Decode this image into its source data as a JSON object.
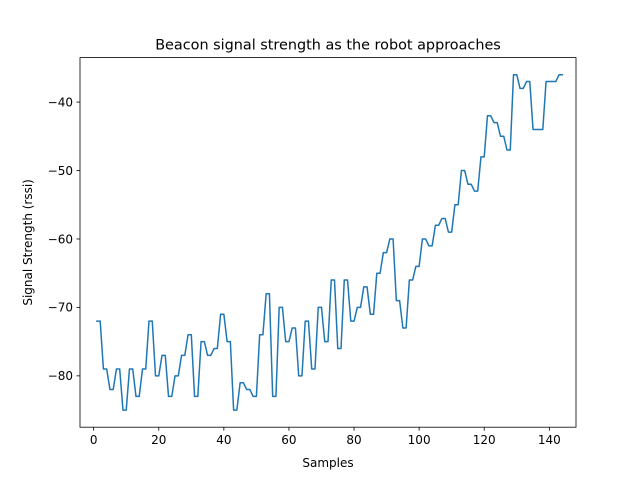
{
  "chart_data": {
    "type": "line",
    "title": "Beacon signal strength as the robot approaches",
    "xlabel": "Samples",
    "ylabel": "Signal Strength (rssi)",
    "xlim": [
      -4.2,
      148.2
    ],
    "ylim": [
      -87.5,
      -33.5
    ],
    "xticks": [
      0,
      20,
      40,
      60,
      80,
      100,
      120,
      140
    ],
    "yticks": [
      -80,
      -70,
      -60,
      -50,
      -40
    ],
    "grid": false,
    "legend": "none",
    "color": "#1f77b4",
    "series": [
      {
        "x": [
          1,
          2,
          3,
          4,
          5,
          6,
          7,
          8,
          9,
          10,
          11,
          12,
          13,
          14,
          15,
          16,
          17,
          18,
          19,
          20,
          21,
          22,
          23,
          24,
          25,
          26,
          27,
          28,
          29,
          30,
          31,
          32,
          33,
          34,
          35,
          36,
          37,
          38,
          39,
          40,
          41,
          42,
          43,
          44,
          45,
          46,
          47,
          48,
          49,
          50,
          51,
          52,
          53,
          54,
          55,
          56,
          57,
          58,
          59,
          60,
          61,
          62,
          63,
          64,
          65,
          66,
          67,
          68,
          69,
          70,
          71,
          72,
          73,
          74,
          75,
          76,
          77,
          78,
          79,
          80,
          81,
          82,
          83,
          84,
          85,
          86,
          87,
          88,
          89,
          90,
          91,
          92,
          93,
          94,
          95,
          96,
          97,
          98,
          99,
          100,
          101,
          102,
          103,
          104,
          105,
          106,
          107,
          108,
          109,
          110,
          111,
          112,
          113,
          114,
          115,
          116,
          117,
          118,
          119,
          120,
          121,
          122,
          123,
          124,
          125,
          126,
          127,
          128,
          129,
          130,
          131,
          132,
          133,
          134,
          135,
          136,
          137,
          138,
          139,
          140,
          141,
          142,
          143,
          144
        ],
        "values": [
          -72,
          -72,
          -79,
          -79,
          -82,
          -82,
          -79,
          -79,
          -85,
          -85,
          -79,
          -79,
          -83,
          -83,
          -79,
          -79,
          -72,
          -72,
          -80,
          -80,
          -77,
          -77,
          -83,
          -83,
          -80,
          -80,
          -77,
          -77,
          -74,
          -74,
          -83,
          -83,
          -75,
          -75,
          -77,
          -77,
          -76,
          -76,
          -71,
          -71,
          -75,
          -75,
          -85,
          -85,
          -81,
          -81,
          -82,
          -82,
          -83,
          -83,
          -74,
          -74,
          -68,
          -68,
          -83,
          -83,
          -70,
          -70,
          -75,
          -75,
          -73,
          -73,
          -80,
          -80,
          -72,
          -72,
          -79,
          -79,
          -70,
          -70,
          -75,
          -75,
          -66,
          -66,
          -76,
          -76,
          -66,
          -66,
          -72,
          -72,
          -70,
          -70,
          -67,
          -67,
          -71,
          -71,
          -65,
          -65,
          -62,
          -62,
          -60,
          -60,
          -69,
          -69,
          -73,
          -73,
          -66,
          -66,
          -64,
          -64,
          -60,
          -60,
          -61,
          -61,
          -58,
          -58,
          -57,
          -57,
          -59,
          -59,
          -55,
          -55,
          -50,
          -50,
          -52,
          -52,
          -53,
          -53,
          -48,
          -48,
          -42,
          -42,
          -43,
          -43,
          -45,
          -45,
          -47,
          -47,
          -36,
          -36,
          -38,
          -38,
          -37,
          -37,
          -44,
          -44,
          -44,
          -44,
          -37,
          -37,
          -37,
          -37,
          -36,
          -36
        ]
      }
    ]
  }
}
